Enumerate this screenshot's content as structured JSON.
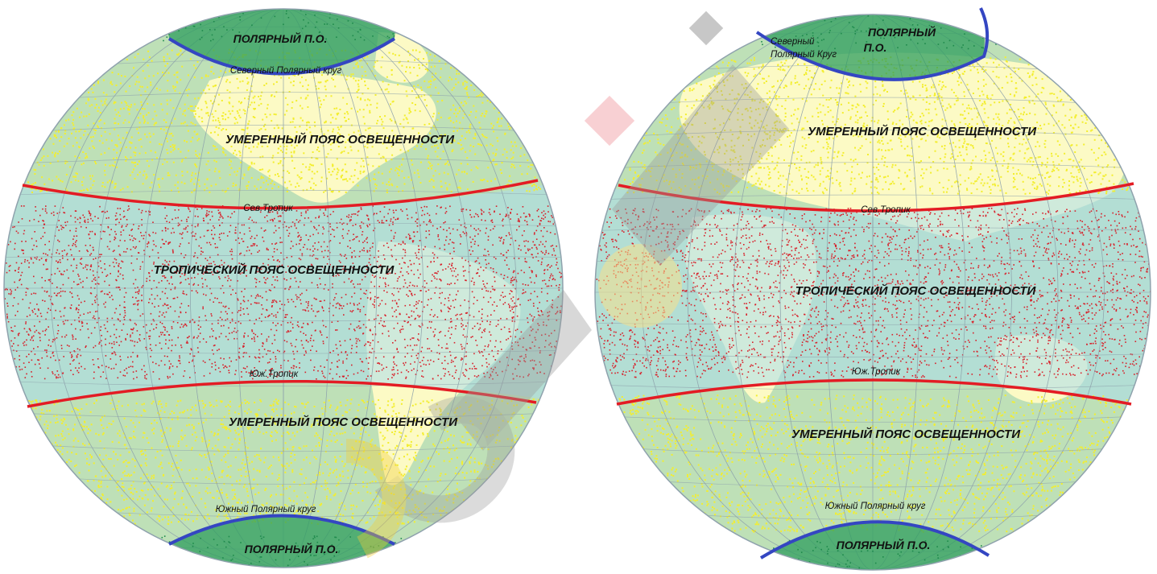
{
  "colors": {
    "ocean": "#a9dcec",
    "land": "#ffffff",
    "temperate": "#f3ee2e",
    "tropical": "#d8202a",
    "polar": "#2e9e5e",
    "tropic_line": "#e31c24",
    "polar_circle_line": "#3446c2",
    "grid": "#8fa2ad",
    "watermark_gray": "#9a9a9a",
    "watermark_yellow": "#f1cf3a",
    "watermark_pink": "#f2a9b0"
  },
  "west": {
    "polar_north": "ПОЛЯРНЫЙ П.О.",
    "arctic_circle": "Северный Полярный круг",
    "temperate_north": "УМЕРЕННЫЙ ПОЯС ОСВЕЩЕННОСТИ",
    "tropic_north": "Сев.Тропик",
    "tropical": "ТРОПИЧЕСКИЙ ПОЯС ОСВЕЩЕННОСТИ",
    "tropic_south": "Юж.Тропик",
    "temperate_south": "УМЕРЕННЫЙ ПОЯС ОСВЕЩЕННОСТИ",
    "antarctic_circle": "Южный Полярный круг",
    "polar_south": "ПОЛЯРНЫЙ П.О."
  },
  "east": {
    "polar_north_line1": "ПОЛЯРНЫЙ",
    "polar_north_line2": "П.О.",
    "arctic_circle_line1": "Северный",
    "arctic_circle_line2": "Полярный Круг",
    "temperate_north": "УМЕРЕННЫЙ ПОЯС ОСВЕЩЕННОСТИ",
    "tropic_north": "Сев.Тропик",
    "tropical": "ТРОПИЧЕСКИЙ ПОЯС ОСВЕЩЕННОСТИ",
    "tropic_south": "Юж.Тропик",
    "temperate_south": "УМЕРЕННЫЙ ПОЯС ОСВЕЩЕННОСТИ",
    "antarctic_circle": "Южный Полярный круг",
    "polar_south": "ПОЛЯРНЫЙ П.О."
  }
}
